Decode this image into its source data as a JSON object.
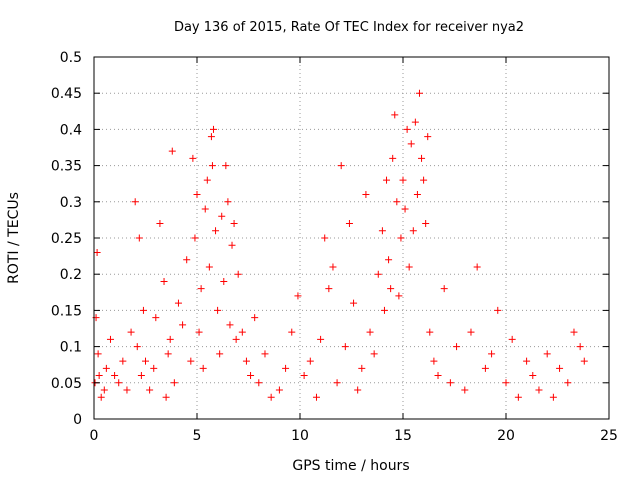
{
  "chart_data": {
    "type": "scatter",
    "title": "Day 136 of 2015, Rate Of TEC Index for receiver nya2",
    "xlabel": "GPS time / hours",
    "ylabel": "ROTI / TECUs",
    "xlim": [
      0,
      25
    ],
    "ylim": [
      0,
      0.5
    ],
    "xticks": [
      0,
      5,
      10,
      15,
      20,
      25
    ],
    "xtick_labels": [
      "0",
      "5",
      "10",
      "15",
      "20",
      "25"
    ],
    "yticks": [
      0,
      0.05,
      0.1,
      0.15,
      0.2,
      0.25,
      0.3,
      0.35,
      0.4,
      0.45,
      0.5
    ],
    "ytick_labels": [
      "0",
      "0.05",
      "0.1",
      "0.15",
      "0.2",
      "0.25",
      "0.3",
      "0.35",
      "0.4",
      "0.45",
      "0.5"
    ],
    "grid": true,
    "marker": "+",
    "color": "#ff0000",
    "series": [
      {
        "x": [
          0.05,
          0.1,
          0.15,
          0.2,
          0.25,
          0.35,
          0.5,
          0.6,
          0.8,
          1.0,
          1.2,
          1.4,
          1.6,
          1.8,
          2.0,
          2.1,
          2.2,
          2.3,
          2.4,
          2.5,
          2.7,
          2.9,
          3.0,
          3.2,
          3.4,
          3.5,
          3.6,
          3.7,
          3.8,
          3.9,
          4.1,
          4.3,
          4.5,
          4.7,
          4.8,
          4.9,
          5.0,
          5.1,
          5.2,
          5.3,
          5.4,
          5.5,
          5.6,
          5.7,
          5.75,
          5.8,
          5.9,
          6.0,
          6.1,
          6.2,
          6.3,
          6.4,
          6.5,
          6.6,
          6.7,
          6.8,
          6.9,
          7.0,
          7.2,
          7.4,
          7.6,
          7.8,
          8.0,
          8.3,
          8.6,
          9.0,
          9.3,
          9.6,
          9.9,
          10.2,
          10.5,
          10.8,
          11.0,
          11.2,
          11.4,
          11.6,
          11.8,
          12.0,
          12.2,
          12.4,
          12.6,
          12.8,
          13.0,
          13.2,
          13.4,
          13.6,
          13.8,
          14.0,
          14.1,
          14.2,
          14.3,
          14.4,
          14.5,
          14.6,
          14.7,
          14.8,
          14.9,
          15.0,
          15.1,
          15.2,
          15.3,
          15.4,
          15.5,
          15.6,
          15.7,
          15.8,
          15.9,
          16.0,
          16.1,
          16.2,
          16.3,
          16.5,
          16.7,
          17.0,
          17.3,
          17.6,
          18.0,
          18.3,
          18.6,
          19.0,
          19.3,
          19.6,
          20.0,
          20.3,
          20.6,
          21.0,
          21.3,
          21.6,
          22.0,
          22.3,
          22.6,
          23.0,
          23.3,
          23.6,
          23.8
        ],
        "y": [
          0.05,
          0.14,
          0.23,
          0.09,
          0.06,
          0.03,
          0.04,
          0.07,
          0.11,
          0.06,
          0.05,
          0.08,
          0.04,
          0.12,
          0.3,
          0.1,
          0.25,
          0.06,
          0.15,
          0.08,
          0.04,
          0.07,
          0.14,
          0.27,
          0.19,
          0.03,
          0.09,
          0.11,
          0.37,
          0.05,
          0.16,
          0.13,
          0.22,
          0.08,
          0.36,
          0.25,
          0.31,
          0.12,
          0.18,
          0.07,
          0.29,
          0.33,
          0.21,
          0.39,
          0.35,
          0.4,
          0.26,
          0.15,
          0.09,
          0.28,
          0.19,
          0.35,
          0.3,
          0.13,
          0.24,
          0.27,
          0.11,
          0.2,
          0.12,
          0.08,
          0.06,
          0.14,
          0.05,
          0.09,
          0.03,
          0.04,
          0.07,
          0.12,
          0.17,
          0.06,
          0.08,
          0.03,
          0.11,
          0.25,
          0.18,
          0.21,
          0.05,
          0.35,
          0.1,
          0.27,
          0.16,
          0.04,
          0.07,
          0.31,
          0.12,
          0.09,
          0.2,
          0.26,
          0.15,
          0.33,
          0.22,
          0.18,
          0.36,
          0.42,
          0.3,
          0.17,
          0.25,
          0.33,
          0.29,
          0.4,
          0.21,
          0.38,
          0.26,
          0.41,
          0.31,
          0.45,
          0.36,
          0.33,
          0.27,
          0.39,
          0.12,
          0.08,
          0.06,
          0.18,
          0.05,
          0.1,
          0.04,
          0.12,
          0.21,
          0.07,
          0.09,
          0.15,
          0.05,
          0.11,
          0.03,
          0.08,
          0.06,
          0.04,
          0.09,
          0.03,
          0.07,
          0.05,
          0.12,
          0.1,
          0.08
        ]
      }
    ]
  }
}
